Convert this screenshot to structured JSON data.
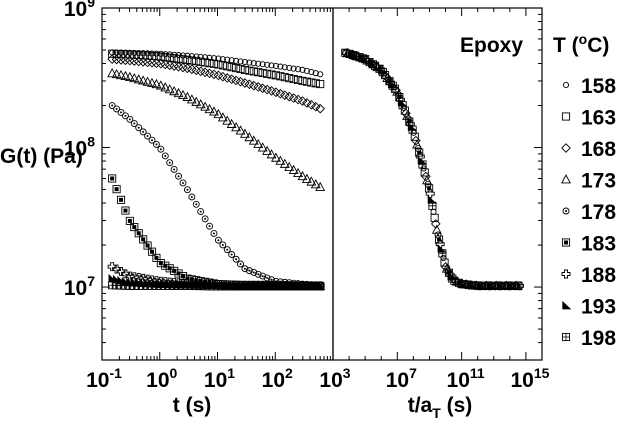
{
  "chart_data": [
    {
      "type": "scatter",
      "panel": "left",
      "xlabel": "t (s)",
      "ylabel": "G(t) (Pa)",
      "x_scale": "log",
      "y_scale": "log",
      "xlim": [
        0.1,
        1000
      ],
      "ylim": [
        3000000,
        1000000000
      ],
      "x_ticks": [
        {
          "base": "10",
          "exp": "-1"
        },
        {
          "base": "10",
          "exp": "0"
        },
        {
          "base": "10",
          "exp": "1"
        },
        {
          "base": "10",
          "exp": "2"
        },
        {
          "base": "10",
          "exp": "3"
        }
      ],
      "y_ticks": [
        {
          "base": "10",
          "exp": "7"
        },
        {
          "base": "10",
          "exp": "8"
        },
        {
          "base": "10",
          "exp": "9"
        }
      ],
      "grid": false,
      "legend_placement": "outside right",
      "series": [
        {
          "name": "158",
          "marker": "circle-small",
          "x": [
            0.15,
            0.3,
            1,
            3,
            10,
            30,
            100,
            300,
            600
          ],
          "y": [
            480000000,
            478000000,
            470000000,
            455000000,
            435000000,
            410000000,
            385000000,
            360000000,
            335000000
          ]
        },
        {
          "name": "163",
          "marker": "square",
          "x": [
            0.15,
            0.3,
            1,
            3,
            10,
            30,
            100,
            300,
            600
          ],
          "y": [
            470000000,
            465000000,
            450000000,
            425000000,
            395000000,
            360000000,
            330000000,
            300000000,
            285000000
          ]
        },
        {
          "name": "168",
          "marker": "diamond",
          "x": [
            0.15,
            0.3,
            1,
            3,
            10,
            30,
            100,
            300,
            600
          ],
          "y": [
            430000000,
            420000000,
            400000000,
            370000000,
            330000000,
            290000000,
            250000000,
            215000000,
            190000000
          ]
        },
        {
          "name": "173",
          "marker": "triangle-up",
          "x": [
            0.15,
            0.3,
            1,
            3,
            10,
            30,
            100,
            300,
            600
          ],
          "y": [
            340000000,
            320000000,
            280000000,
            230000000,
            175000000,
            125000000,
            85000000,
            62000000,
            52000000
          ]
        },
        {
          "name": "178",
          "marker": "circle-dot",
          "x": [
            0.15,
            0.3,
            1,
            3,
            10,
            30,
            100,
            300,
            600
          ],
          "y": [
            200000000,
            160000000,
            100000000,
            50000000,
            22000000,
            13500000,
            11000000,
            10500000,
            10300000
          ]
        },
        {
          "name": "183",
          "marker": "square-filled",
          "x": [
            0.15,
            0.3,
            1,
            3,
            10,
            30,
            100,
            300,
            600
          ],
          "y": [
            60000000,
            30000000,
            15000000,
            11500000,
            10500000,
            10300000,
            10200000,
            10200000,
            10200000
          ]
        },
        {
          "name": "188",
          "marker": "plus-box",
          "x": [
            0.15,
            0.3,
            1,
            3,
            10,
            30,
            100,
            300,
            600
          ],
          "y": [
            14000000,
            12000000,
            11000000,
            10600000,
            10400000,
            10300000,
            10300000,
            10200000,
            10200000
          ]
        },
        {
          "name": "193",
          "marker": "triangle-right",
          "x": [
            0.15,
            0.3,
            1,
            3,
            10,
            30,
            100,
            300,
            600
          ],
          "y": [
            11500000,
            10800000,
            10500000,
            10400000,
            10300000,
            10200000,
            10200000,
            10200000,
            10200000
          ]
        },
        {
          "name": "198",
          "marker": "grid-box",
          "x": [
            0.15,
            0.3,
            1,
            3,
            10,
            30,
            100,
            300,
            600
          ],
          "y": [
            10300000,
            10200000,
            10200000,
            10200000,
            10100000,
            10100000,
            10100000,
            10100000,
            10100000
          ]
        }
      ]
    },
    {
      "type": "scatter",
      "panel": "right",
      "annotation": "Epoxy",
      "xlabel": {
        "base": "t/a",
        "sub": "T",
        "rest": " (s)"
      },
      "x_scale": "log",
      "xlim": [
        1000,
        10000000000000000
      ],
      "x_ticks": [
        {
          "base": "10",
          "exp": "3"
        },
        {
          "base": "10",
          "exp": "7"
        },
        {
          "base": "10",
          "exp": "11"
        },
        {
          "base": "10",
          "exp": "15"
        }
      ],
      "master_curve": {
        "x": [
          5000,
          10000,
          100000,
          1000000,
          10000000,
          100000000,
          1000000000,
          3000000000,
          10000000000,
          30000000000,
          100000000000,
          1000000000000,
          10000000000000,
          100000000000000,
          400000000000000
        ],
        "y": [
          480000000,
          470000000,
          430000000,
          360000000,
          250000000,
          130000000,
          50000000,
          25000000,
          14000000,
          11200000,
          10500000,
          10200000,
          10200000,
          10200000,
          10200000
        ]
      }
    }
  ],
  "legend": {
    "title": {
      "base": "T (",
      "sup": "o",
      "rest": "C)"
    },
    "entries": [
      {
        "label": "158",
        "marker": "circle-small"
      },
      {
        "label": "163",
        "marker": "square"
      },
      {
        "label": "168",
        "marker": "diamond"
      },
      {
        "label": "173",
        "marker": "triangle-up"
      },
      {
        "label": "178",
        "marker": "circle-dot"
      },
      {
        "label": "183",
        "marker": "square-filled"
      },
      {
        "label": "188",
        "marker": "plus-box"
      },
      {
        "label": "193",
        "marker": "triangle-right"
      },
      {
        "label": "198",
        "marker": "grid-box"
      }
    ]
  }
}
